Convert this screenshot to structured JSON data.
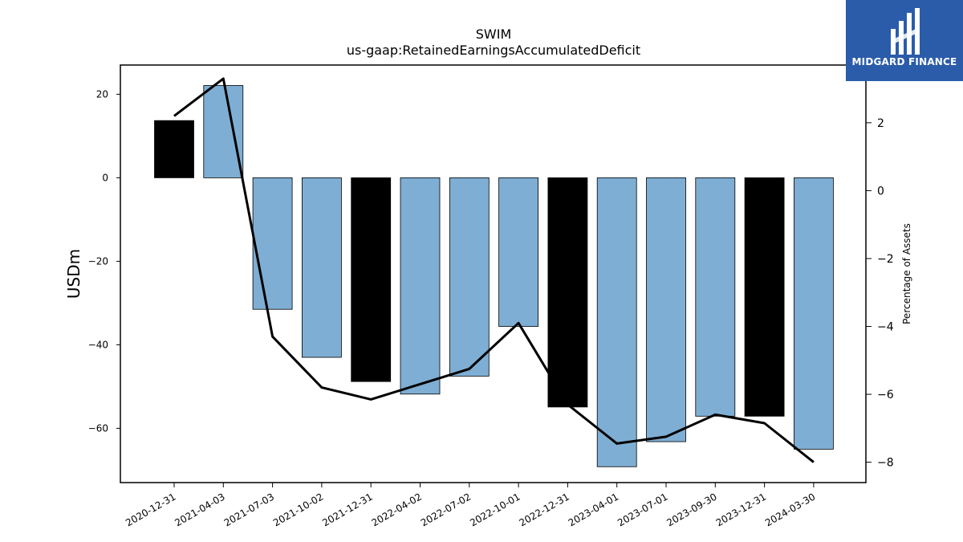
{
  "brand": {
    "name": "MIDGARD FINANCE",
    "color": "#2a5caa"
  },
  "chart_data": {
    "type": "bar",
    "title": "SWIM",
    "subtitle": "us-gaap:RetainedEarningsAccumulatedDeficit",
    "ylabel": "USDm",
    "ylabel_right": "Percentage of Assets",
    "categories": [
      "2020-12-31",
      "2021-04-03",
      "2021-07-03",
      "2021-10-02",
      "2021-12-31",
      "2022-04-02",
      "2022-07-02",
      "2022-10-01",
      "2022-12-31",
      "2023-04-01",
      "2023-07-01",
      "2023-09-30",
      "2023-12-31",
      "2024-03-30"
    ],
    "series": [
      {
        "axis": "left",
        "kind": "bar",
        "values": [
          13.7,
          22.1,
          -31.5,
          -43.0,
          -48.8,
          -51.8,
          -47.5,
          -35.6,
          -54.9,
          -69.2,
          -63.2,
          -57.1,
          -57.1,
          -65.0
        ],
        "highlight": [
          true,
          false,
          false,
          false,
          true,
          false,
          false,
          false,
          true,
          false,
          false,
          false,
          true,
          false
        ],
        "colors": {
          "normal": "#7eaed3",
          "highlight": "#000000"
        }
      },
      {
        "axis": "right",
        "kind": "line",
        "values": [
          2.2,
          3.3,
          -4.3,
          -5.8,
          -6.15,
          -5.7,
          -5.25,
          -3.9,
          -6.3,
          -7.45,
          -7.25,
          -6.6,
          -6.85,
          -8.0
        ],
        "color": "#000000"
      }
    ],
    "ylim": [
      -73,
      27
    ],
    "ylim_right": [
      -8.6,
      3.7
    ],
    "yticks": [
      20,
      0,
      -20,
      -40,
      -60
    ],
    "yticks_right": [
      2,
      0,
      -2,
      -4,
      -6,
      -8
    ],
    "grid": false
  }
}
